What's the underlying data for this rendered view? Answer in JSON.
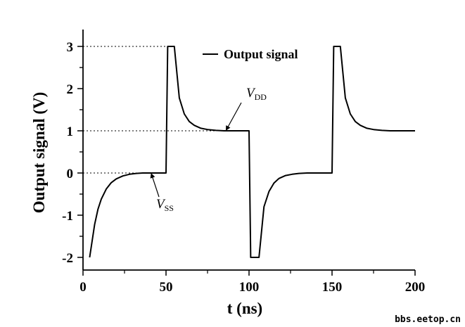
{
  "chart_data": {
    "type": "line",
    "title": "",
    "xlabel": "t (ns)",
    "ylabel": "Output signal (V)",
    "xlim": [
      0,
      200
    ],
    "ylim": [
      -2.3,
      3.4
    ],
    "xticks": [
      0,
      50,
      100,
      150,
      200
    ],
    "yticks": [
      -2,
      -1,
      0,
      1,
      2,
      3
    ],
    "xtick_labels": [
      "0",
      "50",
      "100",
      "150",
      "200"
    ],
    "ytick_labels": [
      "-2",
      "-1",
      "0",
      "1",
      "2",
      "3"
    ],
    "grid": false,
    "legend_position": "top-right",
    "series": [
      {
        "name": "Output signal",
        "color": "#000000",
        "x": [
          4,
          7,
          9,
          11,
          14,
          17,
          20,
          24,
          28,
          32,
          36,
          40,
          44,
          47,
          50,
          50,
          51,
          51.5,
          55,
          58,
          61,
          64,
          67,
          71,
          75,
          80,
          85,
          90,
          95,
          100,
          100,
          101,
          103,
          106,
          109,
          112,
          115,
          118,
          122,
          126,
          130,
          135,
          140,
          145,
          150,
          150,
          151,
          151.5,
          155,
          158,
          161,
          164,
          167,
          171,
          175,
          180,
          185,
          190,
          195,
          200
        ],
        "y": [
          -2,
          -1.22,
          -0.86,
          -0.62,
          -0.38,
          -0.23,
          -0.14,
          -0.07,
          -0.03,
          -0.01,
          0,
          0,
          0,
          0,
          0,
          0,
          3,
          3,
          3,
          1.78,
          1.4,
          1.22,
          1.13,
          1.06,
          1.03,
          1.01,
          1,
          1,
          1,
          1,
          1,
          -2,
          -2,
          -2,
          -0.8,
          -0.44,
          -0.24,
          -0.13,
          -0.06,
          -0.03,
          -0.01,
          0,
          0,
          0,
          0,
          0,
          3,
          3,
          3,
          1.78,
          1.4,
          1.22,
          1.13,
          1.06,
          1.03,
          1.01,
          1,
          1,
          1,
          1
        ]
      }
    ],
    "reference_lines": [
      {
        "y": 3,
        "x_start": 0,
        "x_end": 52
      },
      {
        "y": 1,
        "x_start": 0,
        "x_end": 100
      },
      {
        "y": 0,
        "x_start": 0,
        "x_end": 40
      }
    ],
    "annotations": [
      {
        "label": "V",
        "subscript": "DD",
        "target_x": 86,
        "target_y": 1
      },
      {
        "label": "V",
        "subscript": "SS",
        "target_x": 41,
        "target_y": 0
      }
    ]
  },
  "watermark": "bbs.eetop.cn"
}
